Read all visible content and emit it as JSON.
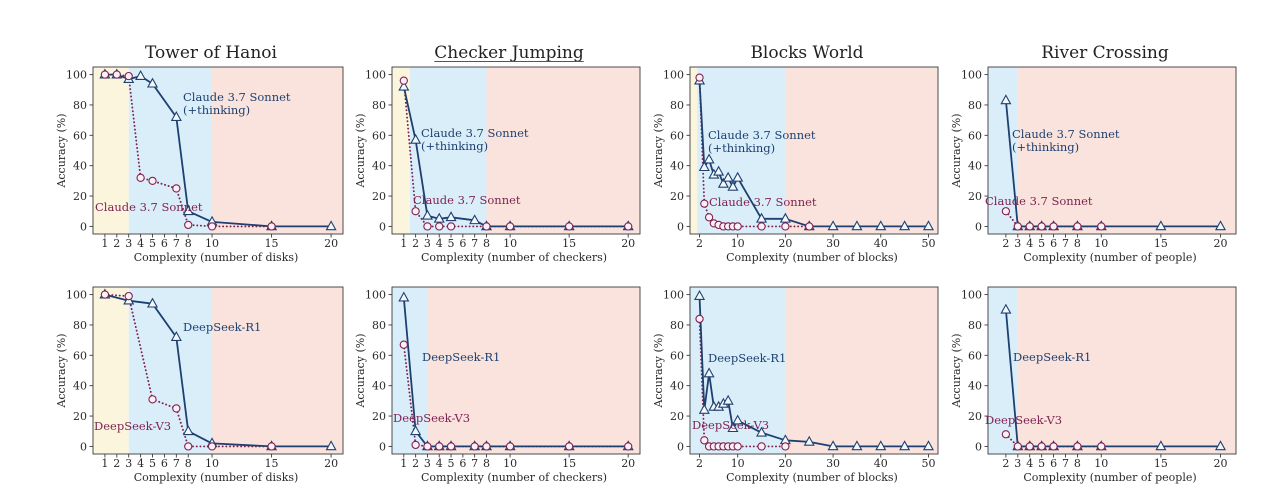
{
  "chart_data": [
    {
      "type": "line",
      "title": "Tower of Hanoi",
      "xlabel": "Complexity (number of disks)",
      "ylabel": "Accuracy (%)",
      "xlim": [
        0,
        21
      ],
      "ylim": [
        -5,
        105
      ],
      "xticks": [
        1,
        2,
        3,
        4,
        5,
        6,
        7,
        8,
        10,
        15,
        20
      ],
      "yticks": [
        0,
        20,
        40,
        60,
        80,
        100
      ],
      "regimes": [
        {
          "from": 0,
          "to": 3,
          "color": "#fcf5de"
        },
        {
          "from": 3,
          "to": 10,
          "color": "#daeefa"
        },
        {
          "from": 10,
          "to": 21,
          "color": "#fae3dc"
        }
      ],
      "series": [
        {
          "label": [
            "Claude 3.7 Sonnet",
            "(+thinking)"
          ],
          "color": "#1d4070",
          "x": [
            1,
            2,
            3,
            4,
            5,
            7,
            8,
            10,
            15,
            20
          ],
          "y": [
            100,
            100,
            97,
            99,
            94,
            72,
            10,
            3,
            0,
            0
          ]
        },
        {
          "label": [
            "Claude 3.7 Sonnet"
          ],
          "color": "#7e2352",
          "x": [
            1,
            2,
            3,
            4,
            5,
            7,
            8,
            10,
            15
          ],
          "y": [
            100,
            100,
            99,
            32,
            30,
            25,
            1,
            0,
            0
          ]
        }
      ]
    },
    {
      "type": "line",
      "title": "Checker Jumping",
      "xlabel": "Complexity (number of checkers)",
      "ylabel": "Accuracy (%)",
      "xlim": [
        0,
        21
      ],
      "ylim": [
        -5,
        105
      ],
      "xticks": [
        1,
        2,
        3,
        4,
        5,
        6,
        7,
        8,
        10,
        15,
        20
      ],
      "yticks": [
        0,
        20,
        40,
        60,
        80,
        100
      ],
      "regimes": [
        {
          "from": 0,
          "to": 1.5,
          "color": "#fcf5de"
        },
        {
          "from": 1.5,
          "to": 8,
          "color": "#daeefa"
        },
        {
          "from": 8,
          "to": 21,
          "color": "#fae3dc"
        }
      ],
      "series": [
        {
          "label": [
            "Claude 3.7 Sonnet",
            "(+thinking)"
          ],
          "color": "#1d4070",
          "x": [
            1,
            2,
            3,
            4,
            5,
            7,
            8,
            10,
            15,
            20
          ],
          "y": [
            92,
            57,
            7,
            5,
            6,
            4,
            0,
            0,
            0,
            0
          ]
        },
        {
          "label": [
            "Claude 3.7 Sonnet"
          ],
          "color": "#7e2352",
          "x": [
            1,
            2,
            3,
            4,
            5,
            8,
            10,
            15,
            20
          ],
          "y": [
            96,
            10,
            0,
            0,
            0,
            0,
            0,
            0,
            0
          ]
        }
      ]
    },
    {
      "type": "line",
      "title": "Blocks World",
      "xlabel": "Complexity (number of blocks)",
      "ylabel": "Accuracy (%)",
      "xlim": [
        0,
        52
      ],
      "ylim": [
        -5,
        105
      ],
      "xticks": [
        2,
        10,
        20,
        30,
        40,
        50
      ],
      "yticks": [
        0,
        20,
        40,
        60,
        80,
        100
      ],
      "regimes": [
        {
          "from": 0,
          "to": 1.5,
          "color": "#fcf5de"
        },
        {
          "from": 1.5,
          "to": 20,
          "color": "#daeefa"
        },
        {
          "from": 20,
          "to": 52,
          "color": "#fae3dc"
        }
      ],
      "series": [
        {
          "label": [
            "Claude 3.7 Sonnet",
            "(+thinking)"
          ],
          "color": "#1d4070",
          "x": [
            2,
            3,
            4,
            5,
            6,
            7,
            8,
            9,
            10,
            15,
            20,
            25,
            30,
            35,
            40,
            45,
            50
          ],
          "y": [
            96,
            39,
            44,
            34,
            36,
            28,
            32,
            26,
            32,
            5,
            5,
            0,
            0,
            0,
            0,
            0,
            0
          ]
        },
        {
          "label": [
            "Claude 3.7 Sonnet"
          ],
          "color": "#7e2352",
          "x": [
            2,
            3,
            4,
            5,
            6,
            7,
            8,
            9,
            10,
            15,
            20,
            25
          ],
          "y": [
            98,
            15,
            6,
            2,
            1,
            0,
            0,
            0,
            0,
            0,
            0,
            0
          ]
        }
      ]
    },
    {
      "type": "line",
      "title": "River Crossing",
      "xlabel": "Complexity (number of people)",
      "ylabel": "Accuracy (%)",
      "xlim": [
        0.5,
        21.3
      ],
      "ylim": [
        -5,
        105
      ],
      "xticks": [
        2,
        3,
        4,
        5,
        6,
        7,
        8,
        10,
        15,
        20
      ],
      "yticks": [
        0,
        20,
        40,
        60,
        80,
        100
      ],
      "regimes": [
        {
          "from": 0.5,
          "to": 3,
          "color": "#daeefa"
        },
        {
          "from": 3,
          "to": 21.3,
          "color": "#fae3dc"
        }
      ],
      "series": [
        {
          "label": [
            "Claude 3.7 Sonnet",
            "(+thinking)"
          ],
          "color": "#1d4070",
          "x": [
            2,
            3,
            4,
            5,
            6,
            8,
            10,
            15,
            20
          ],
          "y": [
            83,
            0,
            0,
            0,
            0,
            0,
            0,
            0,
            0
          ]
        },
        {
          "label": [
            "Claude 3.7 Sonnet"
          ],
          "color": "#7e2352",
          "x": [
            2,
            3,
            4,
            5,
            6,
            8,
            10
          ],
          "y": [
            10,
            0,
            0,
            0,
            0,
            0,
            0
          ]
        }
      ]
    },
    {
      "type": "line",
      "xlabel": "Complexity (number of disks)",
      "ylabel": "Accuracy (%)",
      "xlim": [
        0,
        21
      ],
      "ylim": [
        -5,
        105
      ],
      "xticks": [
        1,
        2,
        3,
        4,
        5,
        6,
        7,
        8,
        10,
        15,
        20
      ],
      "yticks": [
        0,
        20,
        40,
        60,
        80,
        100
      ],
      "regimes": [
        {
          "from": 0,
          "to": 3,
          "color": "#fcf5de"
        },
        {
          "from": 3,
          "to": 10,
          "color": "#daeefa"
        },
        {
          "from": 10,
          "to": 21,
          "color": "#fae3dc"
        }
      ],
      "series": [
        {
          "label": [
            "DeepSeek-R1"
          ],
          "color": "#1d4070",
          "x": [
            1,
            3,
            5,
            7,
            8,
            10,
            15,
            20
          ],
          "y": [
            100,
            96,
            94,
            72,
            10,
            2,
            0,
            0
          ]
        },
        {
          "label": [
            "DeepSeek-V3"
          ],
          "color": "#7e2352",
          "x": [
            1,
            3,
            5,
            7,
            8,
            10,
            15
          ],
          "y": [
            100,
            99,
            31,
            25,
            0,
            0,
            0
          ]
        }
      ]
    },
    {
      "type": "line",
      "xlabel": "Complexity (number of checkers)",
      "ylabel": "Accuracy (%)",
      "xlim": [
        0,
        21
      ],
      "ylim": [
        -5,
        105
      ],
      "xticks": [
        1,
        2,
        3,
        4,
        5,
        6,
        7,
        8,
        10,
        15,
        20
      ],
      "yticks": [
        0,
        20,
        40,
        60,
        80,
        100
      ],
      "regimes": [
        {
          "from": 0,
          "to": 3,
          "color": "#daeefa"
        },
        {
          "from": 3,
          "to": 21,
          "color": "#fae3dc"
        }
      ],
      "series": [
        {
          "label": [
            "DeepSeek-R1"
          ],
          "color": "#1d4070",
          "x": [
            1,
            2,
            3,
            4,
            5,
            7,
            8,
            10,
            15,
            20
          ],
          "y": [
            98,
            10,
            0,
            0,
            0,
            0,
            0,
            0,
            0,
            0
          ]
        },
        {
          "label": [
            "DeepSeek-V3"
          ],
          "color": "#7e2352",
          "x": [
            1,
            2,
            3,
            4,
            5,
            7,
            8,
            10,
            15,
            20
          ],
          "y": [
            67,
            1,
            0,
            0,
            0,
            0,
            0,
            0,
            0,
            0
          ]
        }
      ]
    },
    {
      "type": "line",
      "xlabel": "Complexity (number of blocks)",
      "ylabel": "Accuracy (%)",
      "xlim": [
        0,
        52
      ],
      "ylim": [
        -5,
        105
      ],
      "xticks": [
        2,
        10,
        20,
        30,
        40,
        50
      ],
      "yticks": [
        0,
        20,
        40,
        60,
        80,
        100
      ],
      "regimes": [
        {
          "from": 0,
          "to": 20,
          "color": "#daeefa"
        },
        {
          "from": 20,
          "to": 52,
          "color": "#fae3dc"
        }
      ],
      "series": [
        {
          "label": [
            "DeepSeek-R1"
          ],
          "color": "#1d4070",
          "x": [
            2,
            3,
            4,
            5,
            6,
            7,
            8,
            9,
            10,
            15,
            20,
            25,
            30,
            35,
            40,
            45,
            50
          ],
          "y": [
            99,
            24,
            48,
            26,
            26,
            28,
            30,
            12,
            17,
            9,
            4,
            3,
            0,
            0,
            0,
            0,
            0
          ]
        },
        {
          "label": [
            "DeepSeek-V3"
          ],
          "color": "#7e2352",
          "x": [
            2,
            3,
            4,
            5,
            6,
            7,
            8,
            9,
            10,
            15,
            20
          ],
          "y": [
            84,
            4,
            0,
            0,
            0,
            0,
            0,
            0,
            0,
            0,
            0
          ]
        }
      ]
    },
    {
      "type": "line",
      "xlabel": "Complexity (number of people)",
      "ylabel": "Accuracy (%)",
      "xlim": [
        0.5,
        21.3
      ],
      "ylim": [
        -5,
        105
      ],
      "xticks": [
        2,
        3,
        4,
        5,
        6,
        7,
        8,
        10,
        15,
        20
      ],
      "yticks": [
        0,
        20,
        40,
        60,
        80,
        100
      ],
      "regimes": [
        {
          "from": 0.5,
          "to": 3,
          "color": "#daeefa"
        },
        {
          "from": 3,
          "to": 21.3,
          "color": "#fae3dc"
        }
      ],
      "series": [
        {
          "label": [
            "DeepSeek-R1"
          ],
          "color": "#1d4070",
          "x": [
            2,
            3,
            4,
            5,
            6,
            8,
            10,
            15,
            20
          ],
          "y": [
            90,
            0,
            0,
            0,
            0,
            0,
            0,
            0,
            0
          ]
        },
        {
          "label": [
            "DeepSeek-V3"
          ],
          "color": "#7e2352",
          "x": [
            2,
            3,
            4,
            5,
            6,
            8,
            10
          ],
          "y": [
            8,
            0,
            0,
            0,
            0,
            0,
            0
          ]
        }
      ]
    }
  ]
}
